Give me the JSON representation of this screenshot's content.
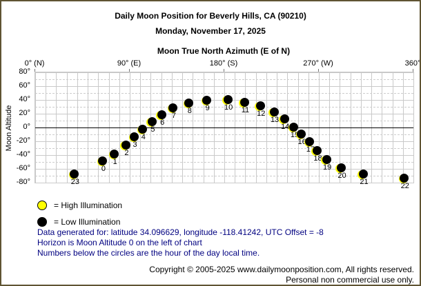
{
  "page": {
    "title": "Daily Moon Position for Beverly Hills, CA (90210)",
    "subtitle": "Monday, November 17, 2025"
  },
  "chart_data": {
    "type": "scatter",
    "title": "Daily Moon Position for Beverly Hills, CA (90210) - Monday, November 17, 2025",
    "xlabel": "Moon True North Azimuth (E of N)",
    "ylabel": "Moon Altitude",
    "xlim": [
      0,
      360
    ],
    "ylim": [
      -80,
      80
    ],
    "grid": "on",
    "x_ticks": [
      {
        "value": 0,
        "label": "0° (N)"
      },
      {
        "value": 90,
        "label": "90° (E)"
      },
      {
        "value": 180,
        "label": "180° (S)"
      },
      {
        "value": 270,
        "label": "270° (W)"
      },
      {
        "value": 360,
        "label": "360°"
      }
    ],
    "y_ticks": [
      {
        "value": 80,
        "label": "80°"
      },
      {
        "value": 60,
        "label": "60°"
      },
      {
        "value": 40,
        "label": "40°"
      },
      {
        "value": 20,
        "label": "20°"
      },
      {
        "value": 0,
        "label": "0°"
      },
      {
        "value": -20,
        "label": "-20°"
      },
      {
        "value": -40,
        "label": "-40°"
      },
      {
        "value": -60,
        "label": "-60°"
      },
      {
        "value": -80,
        "label": "-80°"
      }
    ],
    "grid_steps": {
      "x_step": 10,
      "y_solid_step": 20,
      "y_dashed_step": 10
    },
    "points": [
      {
        "hour": 0,
        "azimuth": 65,
        "altitude": -49,
        "illumination": "low"
      },
      {
        "hour": 1,
        "azimuth": 76,
        "altitude": -39,
        "illumination": "low"
      },
      {
        "hour": 2,
        "azimuth": 87,
        "altitude": -26,
        "illumination": "low"
      },
      {
        "hour": 3,
        "azimuth": 95,
        "altitude": -14,
        "illumination": "low"
      },
      {
        "hour": 4,
        "azimuth": 103,
        "altitude": -3,
        "illumination": "low"
      },
      {
        "hour": 5,
        "azimuth": 112,
        "altitude": 8,
        "illumination": "low"
      },
      {
        "hour": 6,
        "azimuth": 121,
        "altitude": 18,
        "illumination": "low"
      },
      {
        "hour": 7,
        "azimuth": 132,
        "altitude": 28,
        "illumination": "low"
      },
      {
        "hour": 8,
        "azimuth": 147,
        "altitude": 35,
        "illumination": "low"
      },
      {
        "hour": 9,
        "azimuth": 164,
        "altitude": 39,
        "illumination": "low"
      },
      {
        "hour": 10,
        "azimuth": 184,
        "altitude": 40,
        "illumination": "low"
      },
      {
        "hour": 11,
        "azimuth": 200,
        "altitude": 36,
        "illumination": "low"
      },
      {
        "hour": 12,
        "azimuth": 215,
        "altitude": 31,
        "illumination": "low"
      },
      {
        "hour": 13,
        "azimuth": 228,
        "altitude": 22,
        "illumination": "low"
      },
      {
        "hour": 14,
        "azimuth": 238,
        "altitude": 12,
        "illumination": "low"
      },
      {
        "hour": 15,
        "azimuth": 247,
        "altitude": 0,
        "illumination": "low"
      },
      {
        "hour": 16,
        "azimuth": 254,
        "altitude": -10,
        "illumination": "low"
      },
      {
        "hour": 17,
        "azimuth": 262,
        "altitude": -21,
        "illumination": "low"
      },
      {
        "hour": 18,
        "azimuth": 269,
        "altitude": -34,
        "illumination": "low"
      },
      {
        "hour": 19,
        "azimuth": 278,
        "altitude": -47,
        "illumination": "low"
      },
      {
        "hour": 20,
        "azimuth": 292,
        "altitude": -59,
        "illumination": "low"
      },
      {
        "hour": 21,
        "azimuth": 313,
        "altitude": -68,
        "illumination": "low"
      },
      {
        "hour": 22,
        "azimuth": 352,
        "altitude": -74,
        "illumination": "low"
      },
      {
        "hour": 23,
        "azimuth": 38,
        "altitude": -68,
        "illumination": "low"
      }
    ],
    "legend_position": "bottom-left"
  },
  "legend": [
    {
      "swatch": "high-illumination-circle",
      "color": "#ffff00",
      "label": "= High Illumination"
    },
    {
      "swatch": "low-illumination-circle",
      "color": "#000000",
      "label": "= Low Illumination"
    }
  ],
  "notes": [
    "Data generated for: latitude 34.096629, longitude -118.41242, UTC Offset = -8",
    "Horizon is Moon Altitude 0 on the left of chart",
    "Numbers below the circles are the hour of the day local time."
  ],
  "footer": {
    "line1": "Copyright © 2005-2025 www.dailymoonposition.com, All rights reserved.",
    "line2": "Personal non commercial use only."
  },
  "colors": {
    "page_border": "#5f5432",
    "grid": "#c9c9c9",
    "horizon": "#000000",
    "notes_text": "#000080",
    "high_illumination": "#ffff00",
    "low_illumination": "#000000"
  }
}
